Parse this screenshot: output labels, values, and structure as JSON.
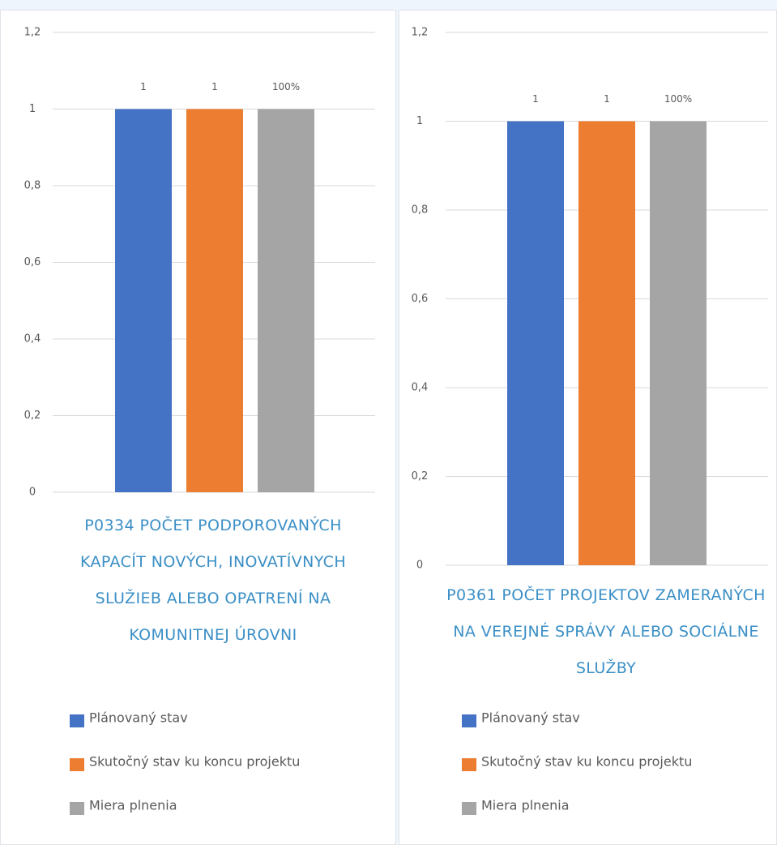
{
  "chart_data": [
    {
      "type": "bar",
      "title": "P0334 POČET PODPOROVANÝCH KAPACÍT NOVÝCH, INOVATÍVNYCH SLUŽIEB ALEBO OPATRENÍ NA KOMUNITNEJ ÚROVNI",
      "series": [
        {
          "name": "Plánovaný stav",
          "color": "#4472c4",
          "values": [
            1
          ]
        },
        {
          "name": "Skutočný stav ku koncu projektu",
          "color": "#ed7d31",
          "values": [
            1
          ]
        },
        {
          "name": "Miera plnenia",
          "color": "#a5a5a5",
          "values": [
            1
          ],
          "value_labels": [
            "100%"
          ]
        }
      ],
      "ylim": [
        0,
        1.2
      ],
      "yticks": [
        0,
        {
          "value": 0.2,
          "label": "0,2"
        },
        {
          "value": 0.4,
          "label": "0,4"
        },
        {
          "value": 0.6,
          "label": "0,6"
        },
        {
          "value": 0.8,
          "label": "0,8"
        },
        1,
        {
          "value": 1.2,
          "label": "1,2"
        }
      ],
      "grid": true
    },
    {
      "type": "bar",
      "title": "P0361 POČET PROJEKTOV ZAMERANÝCH NA VEREJNÉ SPRÁVY ALEBO SOCIÁLNE SLUŽBY",
      "series": [
        {
          "name": "Plánovaný stav",
          "color": "#4472c4",
          "values": [
            1
          ]
        },
        {
          "name": "Skutočný stav ku koncu projektu",
          "color": "#ed7d31",
          "values": [
            1
          ]
        },
        {
          "name": "Miera plnenia",
          "color": "#a5a5a5",
          "values": [
            1
          ],
          "value_labels": [
            "100%"
          ]
        }
      ],
      "ylim": [
        0,
        1.2
      ],
      "yticks": [
        0,
        {
          "value": 0.2,
          "label": "0,2"
        },
        {
          "value": 0.4,
          "label": "0,4"
        },
        {
          "value": 0.6,
          "label": "0,6"
        },
        {
          "value": 0.8,
          "label": "0,8"
        },
        1,
        {
          "value": 1.2,
          "label": "1,2"
        }
      ],
      "grid": true
    }
  ]
}
